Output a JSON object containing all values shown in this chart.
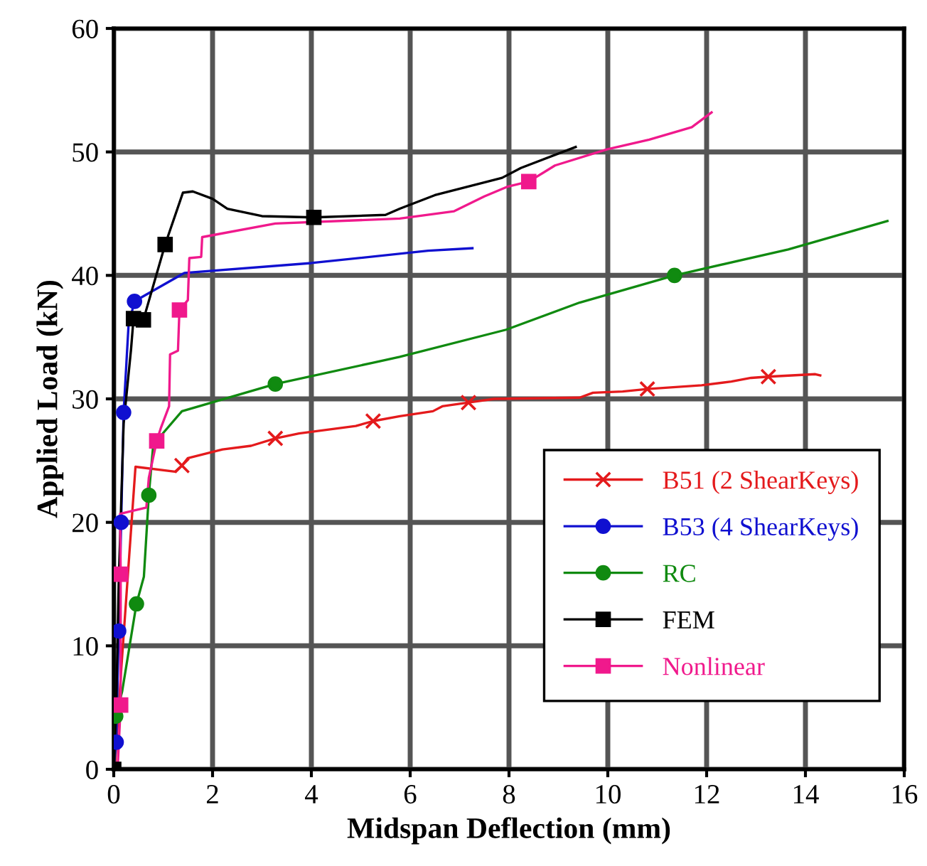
{
  "chart_data": {
    "type": "line",
    "xlabel": "Midspan Deflection (mm)",
    "ylabel": "Applied Load (kN)",
    "xlim": [
      0,
      16
    ],
    "ylim": [
      0,
      60
    ],
    "xticks": [
      0,
      2,
      4,
      6,
      8,
      10,
      12,
      14,
      16
    ],
    "yticks": [
      0,
      10,
      20,
      30,
      40,
      50,
      60
    ],
    "grid": true,
    "legend": "bottom right",
    "line_style": "solid",
    "series": [
      {
        "color": "#e41a1c",
        "marker": "none",
        "x": [
          0.02,
          0.15,
          0.44,
          1.24,
          1.38,
          1.5,
          2.2,
          2.78,
          3.27,
          3.75,
          4.9,
          5.25,
          5.79,
          6.46,
          6.65,
          7.18,
          7.7,
          9.43,
          9.7,
          10.3,
          10.8,
          11.9,
          12.5,
          12.9,
          13.25,
          14.2,
          14.3
        ],
        "values": [
          0,
          8,
          24.5,
          24.1,
          24.6,
          25.2,
          25.9,
          26.2,
          26.8,
          27.2,
          27.8,
          28.2,
          28.6,
          29,
          29.4,
          29.7,
          30,
          30.1,
          30.5,
          30.6,
          30.8,
          31.1,
          31.4,
          31.7,
          31.8,
          32,
          31.9
        ]
      },
      {
        "color": "#1010d0",
        "marker": "none",
        "x": [
          0,
          0.05,
          0.1,
          0.15,
          0.2,
          0.3,
          0.42,
          1.43,
          4,
          6.36,
          7.26
        ],
        "values": [
          0,
          2.2,
          11.2,
          20,
          28.9,
          36,
          37.9,
          40.2,
          41,
          42,
          42.2
        ]
      },
      {
        "color": "#108a10",
        "marker": "none",
        "x": [
          0,
          0.04,
          0.17,
          0.46,
          0.61,
          0.71,
          0.8,
          1.38,
          3.27,
          5.79,
          7.94,
          9.43,
          11.35,
          13.65,
          15.66
        ],
        "values": [
          0,
          4.3,
          6.3,
          13.4,
          15.6,
          22.2,
          26.3,
          29,
          31.2,
          33.4,
          35.6,
          37.8,
          40,
          42.1,
          44.4
        ]
      },
      {
        "color": "#000000",
        "marker": "none",
        "x": [
          0,
          0.05,
          0.1,
          0.2,
          0.35,
          0.4,
          0.6,
          1.04,
          1.4,
          1.6,
          2.0,
          2.3,
          3.0,
          4.05,
          5.5,
          5.79,
          6.5,
          7.86,
          8.24,
          9.35
        ],
        "values": [
          0,
          5,
          15,
          28,
          34,
          36.5,
          36.4,
          42.5,
          46.7,
          46.8,
          46.2,
          45.4,
          44.8,
          44.7,
          44.9,
          45.4,
          46.5,
          47.9,
          48.7,
          50.4
        ]
      },
      {
        "color": "#f0198c",
        "marker": "none",
        "x": [
          0.08,
          0.14,
          0.14,
          0.13,
          0.66,
          0.71,
          0.87,
          0.95,
          1.12,
          1.14,
          1.3,
          1.33,
          1.5,
          1.53,
          1.77,
          1.79,
          3.27,
          5.79,
          6.89,
          7.5,
          7.98,
          8.4,
          8.93,
          9.98,
          10.84,
          11.7,
          12.1
        ],
        "values": [
          0.2,
          5.2,
          15.8,
          20.7,
          21.2,
          23.6,
          26.6,
          27.6,
          29.4,
          33.6,
          33.9,
          37.2,
          38,
          41.4,
          41.5,
          43.1,
          44.2,
          44.6,
          45.2,
          46.4,
          47.2,
          47.6,
          48.9,
          50.2,
          51,
          52,
          53.2
        ]
      },
      {
        "type": "scatter",
        "name": "B51 (2 ShearKeys)",
        "color": "#e41a1c",
        "marker": "cross",
        "x": [
          1.38,
          3.27,
          5.25,
          7.18,
          10.8,
          13.25
        ],
        "values": [
          24.6,
          26.8,
          28.2,
          29.7,
          30.8,
          31.8
        ]
      },
      {
        "type": "scatter",
        "name": "B53 (4 ShearKeys)",
        "color": "#1010d0",
        "marker": "circle",
        "x": [
          0.05,
          0.1,
          0.15,
          0.2,
          0.42
        ],
        "values": [
          2.2,
          11.2,
          20,
          28.9,
          37.9
        ]
      },
      {
        "type": "scatter",
        "name": "RC",
        "color": "#108a10",
        "marker": "circle",
        "x": [
          0.04,
          0.46,
          0.71,
          3.27,
          11.35
        ],
        "values": [
          4.3,
          13.4,
          22.2,
          31.2,
          40
        ]
      },
      {
        "type": "scatter",
        "name": "FEM",
        "color": "#000000",
        "marker": "square",
        "x": [
          0,
          0.4,
          0.6,
          1.04,
          4.05
        ],
        "values": [
          0,
          36.5,
          36.4,
          42.5,
          44.7
        ]
      },
      {
        "type": "scatter",
        "name": "Nonlinear",
        "color": "#f0198c",
        "marker": "square",
        "x": [
          0.14,
          0.14,
          0.87,
          1.33,
          8.4
        ],
        "values": [
          5.2,
          15.8,
          26.6,
          37.2,
          47.6
        ]
      }
    ]
  }
}
